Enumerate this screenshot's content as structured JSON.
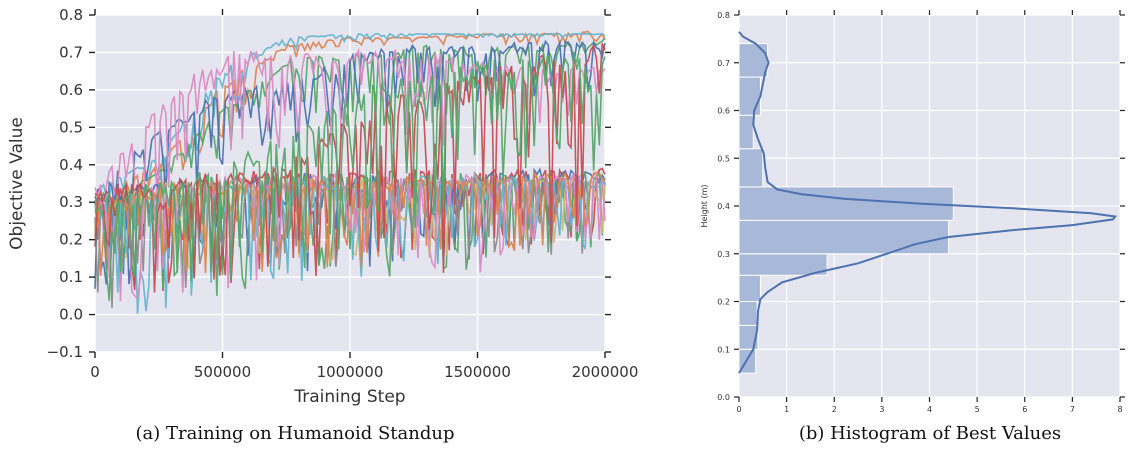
{
  "chart_data": [
    {
      "type": "line",
      "caption": "(a) Training on Humanoid Standup",
      "xlabel": "Training Step",
      "ylabel": "Objective Value",
      "xlim": [
        0,
        2000000
      ],
      "ylim": [
        -0.1,
        0.8
      ],
      "x_ticks": [
        0,
        500000,
        1000000,
        1500000,
        2000000
      ],
      "x_tick_labels": [
        "0",
        "500000",
        "1000000",
        "1500000",
        "2000000"
      ],
      "y_ticks": [
        -0.1,
        0.0,
        0.1,
        0.2,
        0.3,
        0.4,
        0.5,
        0.6,
        0.7,
        0.8
      ],
      "y_tick_labels": [
        "−0.1",
        "0.0",
        "0.1",
        "0.2",
        "0.3",
        "0.4",
        "0.5",
        "0.6",
        "0.7",
        "0.8"
      ],
      "grid": true,
      "background": "#e5e5ef",
      "series_colors": [
        "#4c72b0",
        "#dd8452",
        "#55a868",
        "#c44e52",
        "#da8bc3",
        "#8c8c8c",
        "#ccb974",
        "#64b5cd"
      ],
      "trajectories": [
        {
          "color": "#dd8452",
          "low": [
            0.2,
            0.3,
            0.45,
            0.68,
            0.72,
            0.72,
            0.72,
            0.72,
            0.73
          ],
          "high": [
            0.33,
            0.4,
            0.62,
            0.72,
            0.74,
            0.74,
            0.75,
            0.75,
            0.76
          ]
        },
        {
          "color": "#64b5cd",
          "low": [
            0.3,
            0.34,
            0.5,
            0.7,
            0.73,
            0.74,
            0.74,
            0.74,
            0.74
          ],
          "high": [
            0.34,
            0.42,
            0.66,
            0.74,
            0.75,
            0.75,
            0.75,
            0.75,
            0.75
          ]
        },
        {
          "color": "#55a868",
          "low": [
            0.1,
            0.3,
            0.42,
            0.5,
            0.5,
            0.5,
            0.55,
            0.6,
            0.62
          ],
          "high": [
            0.33,
            0.38,
            0.55,
            0.68,
            0.7,
            0.72,
            0.72,
            0.72,
            0.74
          ]
        },
        {
          "color": "#4c72b0",
          "low": [
            0.05,
            0.3,
            0.35,
            0.45,
            0.5,
            0.55,
            0.55,
            0.55,
            0.58
          ],
          "high": [
            0.33,
            0.5,
            0.6,
            0.62,
            0.7,
            0.72,
            0.72,
            0.73,
            0.73
          ]
        },
        {
          "color": "#da8bc3",
          "low": [
            0.0,
            0.2,
            0.3,
            0.4,
            0.4,
            0.45,
            0.45,
            0.5,
            0.55
          ],
          "high": [
            0.35,
            0.56,
            0.71,
            0.7,
            0.71,
            0.71,
            0.68,
            0.66,
            0.66
          ]
        },
        {
          "color": "#c44e52",
          "low": [
            0.0,
            0.05,
            0.1,
            0.1,
            0.12,
            0.15,
            0.15,
            0.15,
            0.18
          ],
          "high": [
            0.34,
            0.37,
            0.38,
            0.38,
            0.38,
            0.39,
            0.39,
            0.39,
            0.39
          ]
        },
        {
          "color": "#4c72b0",
          "low": [
            0.0,
            0.05,
            0.1,
            0.1,
            0.1,
            0.12,
            0.15,
            0.15,
            0.2
          ],
          "high": [
            0.33,
            0.36,
            0.37,
            0.38,
            0.38,
            0.38,
            0.38,
            0.39,
            0.38
          ]
        },
        {
          "color": "#55a868",
          "low": [
            0.0,
            0.05,
            0.05,
            0.1,
            0.1,
            0.1,
            0.12,
            0.15,
            0.18
          ],
          "high": [
            0.32,
            0.36,
            0.37,
            0.37,
            0.37,
            0.38,
            0.38,
            0.38,
            0.38
          ]
        },
        {
          "color": "#ccb974",
          "low": [
            0.05,
            0.1,
            0.1,
            0.12,
            0.15,
            0.15,
            0.15,
            0.18,
            0.2
          ],
          "high": [
            0.3,
            0.35,
            0.36,
            0.37,
            0.37,
            0.37,
            0.37,
            0.37,
            0.36
          ]
        },
        {
          "color": "#8c8c8c",
          "low": [
            0.0,
            0.05,
            0.1,
            0.1,
            0.12,
            0.12,
            0.15,
            0.15,
            0.15
          ],
          "high": [
            0.3,
            0.34,
            0.35,
            0.36,
            0.36,
            0.37,
            0.37,
            0.37,
            0.37
          ]
        },
        {
          "color": "#64b5cd",
          "low": [
            -0.02,
            0.0,
            0.05,
            0.08,
            0.1,
            0.1,
            0.12,
            0.15,
            0.15
          ],
          "high": [
            0.3,
            0.35,
            0.36,
            0.36,
            0.37,
            0.37,
            0.37,
            0.37,
            0.37
          ]
        },
        {
          "color": "#da8bc3",
          "low": [
            0.02,
            0.05,
            0.05,
            0.1,
            0.1,
            0.12,
            0.1,
            0.12,
            0.15
          ],
          "high": [
            0.3,
            0.36,
            0.37,
            0.37,
            0.38,
            0.38,
            0.38,
            0.38,
            0.38
          ]
        },
        {
          "color": "#dd8452",
          "low": [
            0.05,
            0.08,
            0.1,
            0.12,
            0.12,
            0.15,
            0.15,
            0.18,
            0.2
          ],
          "high": [
            0.32,
            0.35,
            0.36,
            0.36,
            0.37,
            0.37,
            0.37,
            0.38,
            0.38
          ]
        },
        {
          "color": "#c44e52",
          "low": [
            0.0,
            0.05,
            0.08,
            0.1,
            0.1,
            0.12,
            0.1,
            0.1,
            0.15
          ],
          "high": [
            0.33,
            0.36,
            0.38,
            0.4,
            0.55,
            0.6,
            0.65,
            0.7,
            0.73
          ]
        },
        {
          "color": "#55a868",
          "low": [
            0.02,
            0.05,
            0.08,
            0.1,
            0.15,
            0.2,
            0.25,
            0.3,
            0.35
          ],
          "high": [
            0.3,
            0.36,
            0.4,
            0.5,
            0.6,
            0.65,
            0.68,
            0.7,
            0.72
          ]
        }
      ]
    },
    {
      "type": "bar",
      "orientation": "horizontal",
      "caption": "(b) Histogram of Best Values",
      "ylabel": "Height (m)",
      "xlim": [
        0,
        8
      ],
      "ylim": [
        0.0,
        0.8
      ],
      "x_ticks": [
        0,
        1,
        2,
        3,
        4,
        5,
        6,
        7,
        8
      ],
      "x_tick_labels": [
        "0",
        "1",
        "2",
        "3",
        "4",
        "5",
        "6",
        "7",
        "8"
      ],
      "y_ticks": [
        0.0,
        0.1,
        0.2,
        0.3,
        0.4,
        0.5,
        0.6,
        0.7,
        0.8
      ],
      "y_tick_labels": [
        "0.0",
        "0.1",
        "0.2",
        "0.3",
        "0.4",
        "0.5",
        "0.6",
        "0.7",
        "0.8"
      ],
      "grid": true,
      "background": "#e5e5ef",
      "bar_color": "#a8b8d8",
      "line_color": "#4c72b0",
      "bins": [
        {
          "from": 0.0,
          "to": 0.05,
          "value": 0.0
        },
        {
          "from": 0.05,
          "to": 0.1,
          "value": 0.35
        },
        {
          "from": 0.1,
          "to": 0.15,
          "value": 0.4
        },
        {
          "from": 0.15,
          "to": 0.2,
          "value": 0.38
        },
        {
          "from": 0.2,
          "to": 0.255,
          "value": 0.45
        },
        {
          "from": 0.255,
          "to": 0.3,
          "value": 1.85
        },
        {
          "from": 0.3,
          "to": 0.37,
          "value": 4.4
        },
        {
          "from": 0.37,
          "to": 0.44,
          "value": 4.5
        },
        {
          "from": 0.44,
          "to": 0.52,
          "value": 0.5
        },
        {
          "from": 0.52,
          "to": 0.59,
          "value": 0.3
        },
        {
          "from": 0.59,
          "to": 0.67,
          "value": 0.45
        },
        {
          "from": 0.67,
          "to": 0.74,
          "value": 0.6
        }
      ],
      "kde": [
        {
          "y": 0.05,
          "x": 0.0
        },
        {
          "y": 0.07,
          "x": 0.12
        },
        {
          "y": 0.1,
          "x": 0.3
        },
        {
          "y": 0.14,
          "x": 0.38
        },
        {
          "y": 0.18,
          "x": 0.4
        },
        {
          "y": 0.205,
          "x": 0.45
        },
        {
          "y": 0.22,
          "x": 0.6
        },
        {
          "y": 0.24,
          "x": 0.9
        },
        {
          "y": 0.26,
          "x": 1.6
        },
        {
          "y": 0.28,
          "x": 2.5
        },
        {
          "y": 0.3,
          "x": 3.1
        },
        {
          "y": 0.32,
          "x": 3.7
        },
        {
          "y": 0.335,
          "x": 4.4
        },
        {
          "y": 0.35,
          "x": 5.8
        },
        {
          "y": 0.36,
          "x": 7.0
        },
        {
          "y": 0.372,
          "x": 7.85
        },
        {
          "y": 0.378,
          "x": 7.9
        },
        {
          "y": 0.385,
          "x": 7.4
        },
        {
          "y": 0.395,
          "x": 5.8
        },
        {
          "y": 0.405,
          "x": 3.8
        },
        {
          "y": 0.415,
          "x": 2.2
        },
        {
          "y": 0.425,
          "x": 1.3
        },
        {
          "y": 0.435,
          "x": 0.8
        },
        {
          "y": 0.45,
          "x": 0.6
        },
        {
          "y": 0.48,
          "x": 0.55
        },
        {
          "y": 0.51,
          "x": 0.52
        },
        {
          "y": 0.54,
          "x": 0.4
        },
        {
          "y": 0.57,
          "x": 0.3
        },
        {
          "y": 0.6,
          "x": 0.32
        },
        {
          "y": 0.63,
          "x": 0.45
        },
        {
          "y": 0.655,
          "x": 0.5
        },
        {
          "y": 0.68,
          "x": 0.55
        },
        {
          "y": 0.7,
          "x": 0.62
        },
        {
          "y": 0.72,
          "x": 0.55
        },
        {
          "y": 0.74,
          "x": 0.35
        },
        {
          "y": 0.755,
          "x": 0.08
        },
        {
          "y": 0.765,
          "x": 0.0
        }
      ]
    }
  ]
}
